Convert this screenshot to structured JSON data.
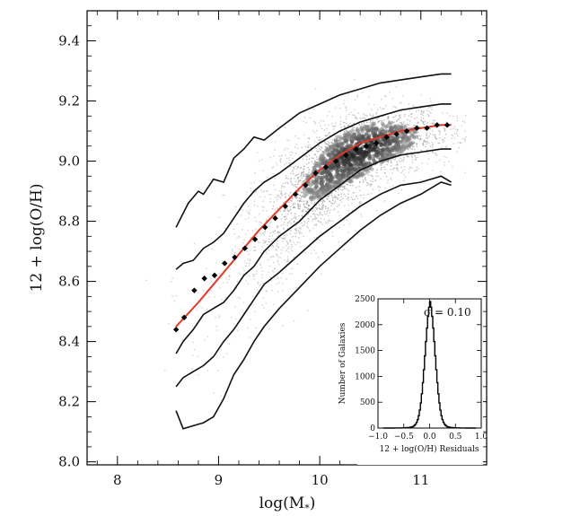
{
  "chart_data": [
    {
      "type": "scatter",
      "title": "",
      "xlabel": "log(M*)",
      "xlabel_main": "log(M",
      "xlabel_sub": "*",
      "xlabel_close": ")",
      "ylabel": "12 + log(O/H)",
      "xlim": [
        7.7,
        11.65
      ],
      "ylim": [
        7.99,
        9.5
      ],
      "xticks": [
        8,
        9,
        10,
        11
      ],
      "xtick_labels": [
        "8",
        "9",
        "10",
        "11"
      ],
      "yticks": [
        8.0,
        8.2,
        8.4,
        8.6,
        8.8,
        9.0,
        9.2,
        9.4
      ],
      "ytick_labels": [
        "8.0",
        "8.2",
        "8.4",
        "8.6",
        "8.8",
        "9.0",
        "9.2",
        "9.4"
      ],
      "grid": false,
      "density_colormap": "greyscale",
      "median_points": {
        "name": "",
        "color": "#000000",
        "x": [
          8.58,
          8.66,
          8.76,
          8.86,
          8.96,
          9.06,
          9.16,
          9.26,
          9.36,
          9.46,
          9.56,
          9.66,
          9.76,
          9.86,
          9.96,
          10.06,
          10.16,
          10.26,
          10.36,
          10.46,
          10.56,
          10.66,
          10.76,
          10.86,
          10.96,
          11.06,
          11.16,
          11.26
        ],
        "y": [
          8.44,
          8.48,
          8.57,
          8.61,
          8.62,
          8.66,
          8.68,
          8.71,
          8.74,
          8.78,
          8.81,
          8.85,
          8.89,
          8.92,
          8.96,
          8.98,
          9.0,
          9.02,
          9.04,
          9.05,
          9.06,
          9.08,
          9.09,
          9.1,
          9.11,
          9.11,
          9.12,
          9.12
        ]
      },
      "fit_curve": {
        "name": "",
        "color": "#e03a2a",
        "x": [
          8.58,
          8.8,
          9.0,
          9.2,
          9.4,
          9.6,
          9.8,
          10.0,
          10.2,
          10.4,
          10.6,
          10.8,
          11.0,
          11.2,
          11.3
        ],
        "y": [
          8.45,
          8.53,
          8.61,
          8.69,
          8.77,
          8.84,
          8.91,
          8.97,
          9.02,
          9.06,
          9.08,
          9.1,
          9.11,
          9.12,
          9.12
        ]
      },
      "contours": [
        {
          "name": "",
          "x": [
            8.58,
            8.7,
            8.8,
            8.85,
            8.95,
            9.05,
            9.15,
            9.25,
            9.35,
            9.45,
            9.6,
            9.8,
            10.0,
            10.2,
            10.4,
            10.6,
            10.8,
            11.0,
            11.2,
            11.3
          ],
          "y": [
            8.78,
            8.86,
            8.9,
            8.89,
            8.94,
            8.93,
            9.01,
            9.04,
            9.08,
            9.07,
            9.11,
            9.16,
            9.19,
            9.22,
            9.24,
            9.26,
            9.27,
            9.28,
            9.29,
            9.29
          ]
        },
        {
          "name": "",
          "x": [
            8.58,
            8.65,
            8.75,
            8.85,
            8.95,
            9.05,
            9.15,
            9.25,
            9.35,
            9.45,
            9.6,
            9.8,
            10.0,
            10.2,
            10.4,
            10.6,
            10.8,
            11.0,
            11.2,
            11.3
          ],
          "y": [
            8.64,
            8.66,
            8.67,
            8.71,
            8.73,
            8.76,
            8.81,
            8.86,
            8.9,
            8.93,
            8.96,
            9.01,
            9.06,
            9.1,
            9.13,
            9.15,
            9.17,
            9.18,
            9.19,
            9.19
          ]
        },
        {
          "name": "",
          "x": [
            8.58,
            8.65,
            8.75,
            8.85,
            8.95,
            9.05,
            9.15,
            9.25,
            9.35,
            9.45,
            9.6,
            9.8,
            10.0,
            10.2,
            10.4,
            10.6,
            10.8,
            11.0,
            11.2,
            11.3
          ],
          "y": [
            8.36,
            8.4,
            8.44,
            8.49,
            8.51,
            8.53,
            8.57,
            8.62,
            8.65,
            8.7,
            8.75,
            8.8,
            8.87,
            8.92,
            8.97,
            9.0,
            9.02,
            9.03,
            9.04,
            9.04
          ]
        },
        {
          "name": "",
          "x": [
            8.58,
            8.65,
            8.75,
            8.85,
            8.95,
            9.05,
            9.15,
            9.25,
            9.35,
            9.45,
            9.6,
            9.8,
            10.0,
            10.2,
            10.4,
            10.6,
            10.8,
            11.0,
            11.2,
            11.3
          ],
          "y": [
            8.25,
            8.28,
            8.3,
            8.32,
            8.35,
            8.4,
            8.44,
            8.49,
            8.54,
            8.59,
            8.63,
            8.69,
            8.75,
            8.8,
            8.85,
            8.89,
            8.92,
            8.93,
            8.95,
            8.93
          ]
        },
        {
          "name": "",
          "x": [
            8.58,
            8.65,
            8.75,
            8.85,
            8.95,
            9.05,
            9.15,
            9.25,
            9.35,
            9.45,
            9.6,
            9.8,
            10.0,
            10.2,
            10.4,
            10.6,
            10.8,
            11.0,
            11.2,
            11.3
          ],
          "y": [
            8.17,
            8.11,
            8.12,
            8.13,
            8.15,
            8.21,
            8.29,
            8.34,
            8.4,
            8.45,
            8.51,
            8.58,
            8.65,
            8.71,
            8.77,
            8.82,
            8.86,
            8.89,
            8.93,
            8.92
          ]
        }
      ],
      "ridge": {
        "x": [
          8.6,
          9.0,
          9.4,
          9.8,
          10.2,
          10.6,
          11.0,
          11.3
        ],
        "y": [
          8.45,
          8.62,
          8.77,
          8.91,
          9.02,
          9.08,
          9.11,
          9.12
        ]
      }
    },
    {
      "type": "histogram",
      "title": "",
      "xlabel": "12 + log(O/H) Residuals",
      "ylabel": "Number of Galaxies",
      "xlim": [
        -1.0,
        1.0
      ],
      "ylim": [
        0,
        2500
      ],
      "xticks": [
        -1.0,
        -0.5,
        0.0,
        0.5,
        1.0
      ],
      "xtick_labels": [
        "−1.0",
        "−0.5",
        "0.0",
        "0.5",
        "1.0"
      ],
      "yticks": [
        0,
        500,
        1000,
        1500,
        2000,
        2500
      ],
      "ytick_labels": [
        "0",
        "500",
        "1000",
        "1500",
        "2000",
        "2500"
      ],
      "annotation": "σ = 0.10",
      "sigma": 0.1,
      "peak": 2450,
      "center": 0.0
    }
  ]
}
